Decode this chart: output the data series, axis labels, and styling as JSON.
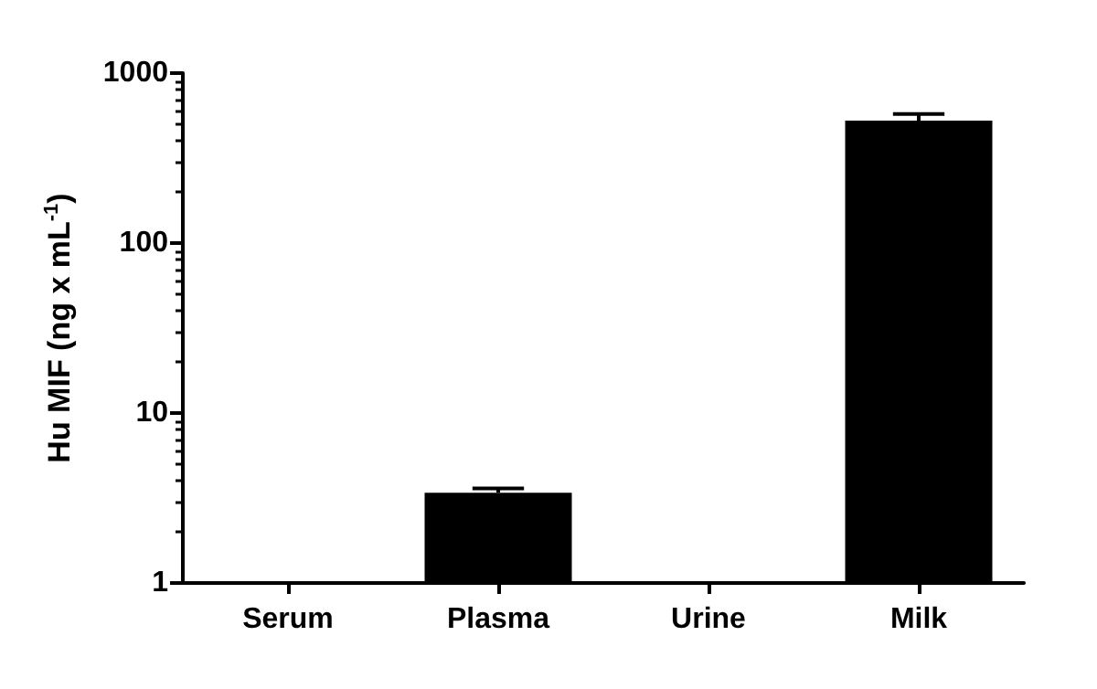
{
  "chart_data": {
    "type": "bar",
    "ylabel": "Hu MIF (ng x mL$^{-1}$)",
    "categories": [
      "Serum",
      "Plasma",
      "Urine",
      "Milk"
    ],
    "values": [
      null,
      3.4,
      null,
      525
    ],
    "errors": [
      null,
      [
        3.4,
        3.6
      ],
      null,
      [
        525,
        575
      ]
    ],
    "color": "#000000",
    "log": "y",
    "ylim": [
      1,
      1000
    ],
    "yticks": [
      1,
      10,
      100,
      1000
    ],
    "grid": false
  }
}
